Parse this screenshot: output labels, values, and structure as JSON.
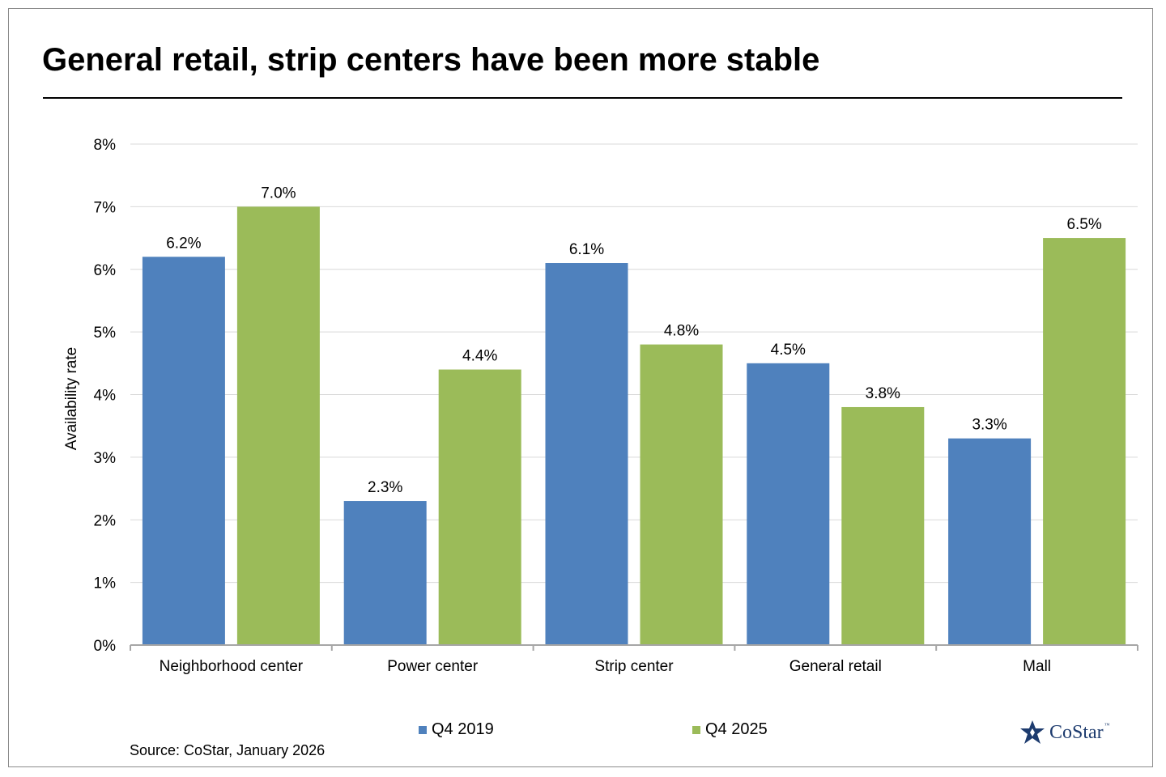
{
  "header": {
    "title": "General retail, strip centers have been more stable"
  },
  "chart_data": {
    "type": "bar",
    "title": "General retail, strip centers have been more stable",
    "xlabel": "",
    "ylabel": "Availability rate",
    "ylim": [
      0,
      8
    ],
    "yticks": [
      0,
      1,
      2,
      3,
      4,
      5,
      6,
      7,
      8
    ],
    "ytick_labels": [
      "0%",
      "1%",
      "2%",
      "3%",
      "4%",
      "5%",
      "6%",
      "7%",
      "8%"
    ],
    "grid": true,
    "legend_position": "bottom",
    "categories": [
      "Neighborhood center",
      "Power center",
      "Strip center",
      "General retail",
      "Mall"
    ],
    "series": [
      {
        "name": "Q4 2019",
        "color": "#4f81bd",
        "values": [
          6.2,
          2.3,
          6.1,
          4.5,
          3.3
        ],
        "labels": [
          "6.2%",
          "2.3%",
          "6.1%",
          "4.5%",
          "3.3%"
        ]
      },
      {
        "name": "Q4 2025",
        "color": "#9bbb59",
        "values": [
          7.0,
          4.4,
          4.8,
          3.8,
          6.5
        ],
        "labels": [
          "7.0%",
          "4.4%",
          "4.8%",
          "3.8%",
          "6.5%"
        ]
      }
    ]
  },
  "legend": {
    "items": [
      {
        "label": "Q4 2019",
        "color": "#4f81bd"
      },
      {
        "label": "Q4 2025",
        "color": "#9bbb59"
      }
    ]
  },
  "footer": {
    "source": "Source: CoStar, January 2026",
    "logo_text": "CoStar",
    "logo_tm": "™",
    "logo_color": "#1d3b6e"
  }
}
